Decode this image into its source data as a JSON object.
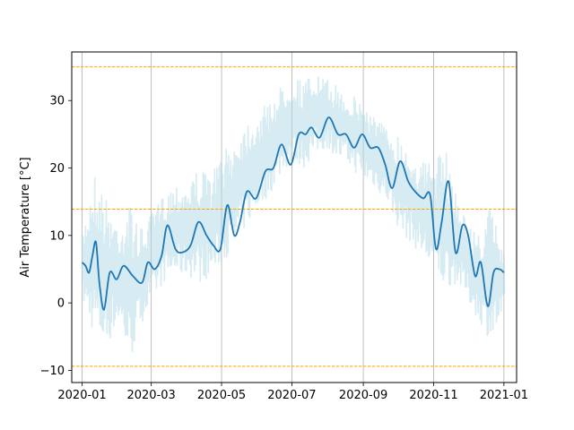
{
  "chart_data": {
    "type": "line",
    "title": "",
    "xlabel": "",
    "ylabel": "Air Temperature [°C]",
    "xlim": [
      "2019-12-23",
      "2021-01-12"
    ],
    "ylim": [
      -11.8,
      37.2
    ],
    "x_ticks": [
      "2020-01",
      "2020-03",
      "2020-05",
      "2020-07",
      "2020-09",
      "2020-11",
      "2021-01"
    ],
    "y_ticks": [
      -10,
      0,
      10,
      20,
      30
    ],
    "grid": "vertical",
    "reference_lines": [
      35.0,
      13.9,
      -9.4
    ],
    "colors": {
      "raw": "#add8e6",
      "smoothed": "#1f77b4",
      "reference": "#ffa500",
      "grid": "#b0b0b0"
    },
    "series": [
      {
        "x": [
          "2020-01-01",
          "2020-01-11",
          "2020-01-21",
          "2020-02-01",
          "2020-02-11",
          "2020-02-21",
          "2020-03-01",
          "2020-03-11",
          "2020-03-21",
          "2020-04-01",
          "2020-04-11",
          "2020-04-21",
          "2020-05-01",
          "2020-05-11",
          "2020-05-21",
          "2020-06-01",
          "2020-06-11",
          "2020-06-21",
          "2020-07-01",
          "2020-07-11",
          "2020-07-21",
          "2020-08-01",
          "2020-08-11",
          "2020-08-21",
          "2020-09-01",
          "2020-09-11",
          "2020-09-21",
          "2020-10-01",
          "2020-10-11",
          "2020-10-21",
          "2020-11-01",
          "2020-11-11",
          "2020-11-21",
          "2020-12-01",
          "2020-12-11",
          "2020-12-21",
          "2021-01-01"
        ],
        "low": [
          0,
          -5,
          -7,
          -3,
          -9,
          -3,
          0,
          3,
          4,
          4,
          3,
          4,
          6,
          8,
          11,
          14,
          16,
          19,
          21,
          20,
          22,
          23,
          21,
          20,
          18,
          17,
          15,
          11,
          9,
          7,
          4,
          2,
          3,
          0,
          -3,
          -6,
          -2
        ],
        "high": [
          10,
          20,
          16,
          12,
          15,
          11,
          13,
          16,
          18,
          18,
          20,
          19,
          22,
          24,
          27,
          28,
          30,
          32,
          34,
          33,
          34,
          33,
          32,
          31,
          30,
          28,
          26,
          25,
          23,
          21,
          21,
          23,
          16,
          12,
          10,
          15,
          8
        ]
      },
      {
        "x": [
          "2020-01-01",
          "2020-01-04",
          "2020-01-07",
          "2020-01-10",
          "2020-01-13",
          "2020-01-16",
          "2020-01-20",
          "2020-01-25",
          "2020-01-31",
          "2020-02-06",
          "2020-02-14",
          "2020-02-22",
          "2020-02-27",
          "2020-03-04",
          "2020-03-10",
          "2020-03-15",
          "2020-03-22",
          "2020-03-28",
          "2020-04-04",
          "2020-04-11",
          "2020-04-18",
          "2020-04-24",
          "2020-04-30",
          "2020-05-06",
          "2020-05-12",
          "2020-05-17",
          "2020-05-23",
          "2020-05-31",
          "2020-06-08",
          "2020-06-15",
          "2020-06-22",
          "2020-06-30",
          "2020-07-07",
          "2020-07-13",
          "2020-07-18",
          "2020-07-25",
          "2020-08-02",
          "2020-08-10",
          "2020-08-17",
          "2020-08-24",
          "2020-08-31",
          "2020-09-07",
          "2020-09-14",
          "2020-09-20",
          "2020-09-26",
          "2020-10-03",
          "2020-10-10",
          "2020-10-16",
          "2020-10-23",
          "2020-10-29",
          "2020-11-03",
          "2020-11-08",
          "2020-11-14",
          "2020-11-20",
          "2020-11-26",
          "2020-12-01",
          "2020-12-07",
          "2020-12-12",
          "2020-12-18",
          "2020-12-23",
          "2020-12-28",
          "2021-01-01"
        ],
        "values": [
          6,
          5.5,
          4.5,
          7,
          9,
          3,
          -1,
          4.5,
          3.5,
          5.5,
          4,
          3,
          6,
          5,
          7,
          11.5,
          8,
          7.5,
          8.5,
          12,
          10,
          8.5,
          8,
          14.5,
          10,
          12,
          16.5,
          15.5,
          19.5,
          20,
          23.5,
          20.5,
          25,
          25,
          26,
          24.5,
          27.5,
          25,
          25,
          23,
          25,
          23,
          23,
          20.5,
          17,
          21,
          18,
          16.5,
          15.5,
          16,
          8,
          12,
          18,
          7.5,
          11.5,
          10,
          4,
          6,
          -0.5,
          4.5,
          5,
          4.5
        ]
      }
    ]
  }
}
